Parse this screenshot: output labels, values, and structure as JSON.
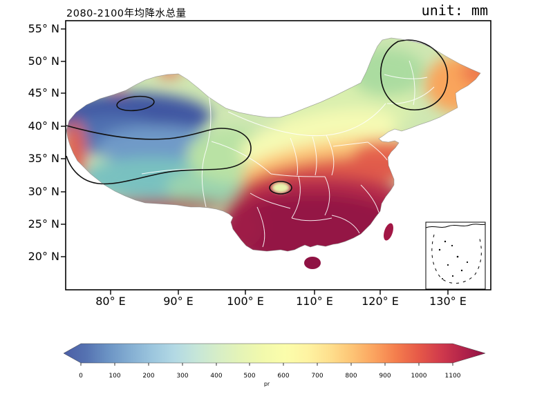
{
  "figure": {
    "title": "2080-2100年均降水总量",
    "unit_label": "unit: mm"
  },
  "axes": {
    "y_ticks": [
      "55° N",
      "50° N",
      "45° N",
      "40° N",
      "35° N",
      "30° N",
      "25° N",
      "20° N"
    ],
    "x_ticks": [
      "80° E",
      "90° E",
      "100° E",
      "110° E",
      "120° E",
      "130° E"
    ]
  },
  "colorbar": {
    "label": "pr",
    "ticks": [
      "0",
      "100",
      "200",
      "300",
      "400",
      "500",
      "600",
      "700",
      "800",
      "900",
      "1000",
      "1100"
    ],
    "extend": "both",
    "colors": [
      "#4b5ea6",
      "#5572b1",
      "#6b93c4",
      "#84aed2",
      "#9cc6de",
      "#b3d9e4",
      "#c6e6d8",
      "#d7eec6",
      "#e5f4b6",
      "#f2f9ac",
      "#fbfdab",
      "#fef3a2",
      "#fedf8d",
      "#fdc475",
      "#fba35f",
      "#f47d4d",
      "#e65948",
      "#d03a4c",
      "#b2234a",
      "#901245"
    ]
  },
  "map": {
    "contour_line_color": "#000000",
    "province_border_color": "#ffffff",
    "low_value_region_color": "#4b5ea6",
    "high_value_region_color": "#901245"
  },
  "chart_data": {
    "type": "heatmap",
    "title": "2080-2100年均降水总量",
    "unit": "mm",
    "scale_ticks": [
      0,
      100,
      200,
      300,
      400,
      500,
      600,
      700,
      800,
      900,
      1000,
      1100
    ],
    "scale_label": "pr",
    "legend_position": "bottom",
    "notes": "Filled-contour precipitation map of China; low values (blue) in northwest, high values (dark red) in south/southeast"
  }
}
